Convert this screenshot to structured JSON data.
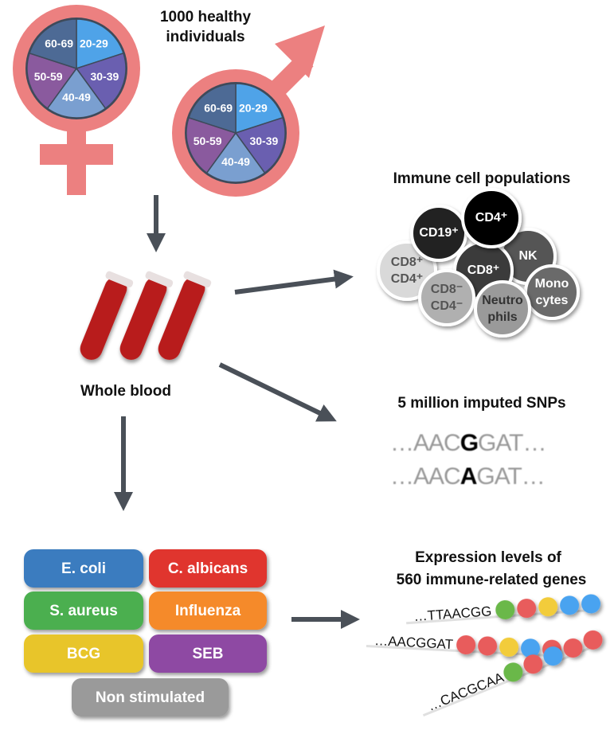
{
  "cohort": {
    "title_line1": "1000 healthy",
    "title_line2": "individuals",
    "age_groups": [
      "20-29",
      "30-39",
      "40-49",
      "50-59",
      "60-69"
    ],
    "age_colors": [
      "#4fa3e8",
      "#6a5fb0",
      "#7a9fd0",
      "#8a5a9e",
      "#4d6a95"
    ],
    "symbol_color": "#ec8080"
  },
  "blood": {
    "label": "Whole blood"
  },
  "cells": {
    "title": "Immune cell populations",
    "items": [
      {
        "l1": "CD8⁺",
        "l2": "CD4⁺",
        "fill": "#d9d9d9",
        "text": "#555"
      },
      {
        "l1": "CD19⁺",
        "l2": "",
        "fill": "#222222",
        "text": "#fff"
      },
      {
        "l1": "NK",
        "l2": "",
        "fill": "#555555",
        "text": "#fff"
      },
      {
        "l1": "CD8⁺",
        "l2": "",
        "fill": "#3a3a3a",
        "text": "#fff"
      },
      {
        "l1": "CD4⁺",
        "l2": "",
        "fill": "#000000",
        "text": "#fff"
      },
      {
        "l1": "Mono",
        "l2": "cytes",
        "fill": "#6a6a6a",
        "text": "#fff"
      },
      {
        "l1": "CD8⁻",
        "l2": "CD4⁻",
        "fill": "#b0b0b0",
        "text": "#555"
      },
      {
        "l1": "Neutro",
        "l2": "phils",
        "fill": "#9a9a9a",
        "text": "#333"
      }
    ]
  },
  "snps": {
    "title": "5 million imputed SNPs",
    "row1": {
      "prefix": "…AAC",
      "allele": "G",
      "suffix": "GAT…"
    },
    "row2": {
      "prefix": "…AAC",
      "allele": "A",
      "suffix": "GAT…"
    }
  },
  "stimuli": {
    "items": [
      {
        "label": "E. coli",
        "color": "#3a7bbf"
      },
      {
        "label": "C. albicans",
        "color": "#e0342f"
      },
      {
        "label": "S. aureus",
        "color": "#4caf50"
      },
      {
        "label": "Influenza",
        "color": "#f58a2a"
      },
      {
        "label": "BCG",
        "color": "#e8c52a"
      },
      {
        "label": "SEB",
        "color": "#8e4aa3"
      },
      {
        "label": "Non stimulated",
        "color": "#9a9a9a"
      }
    ]
  },
  "expression": {
    "title_line1": "Expression levels of",
    "title_line2": "560 immune-related genes",
    "strands": [
      {
        "seq": "…TTAACGG",
        "beads": [
          "#6ab84a",
          "#e85c5c",
          "#f2cc3a",
          "#4aa3f0",
          "#4aa3f0"
        ]
      },
      {
        "seq": "…AACGGAT",
        "beads": [
          "#e85c5c",
          "#e85c5c",
          "#f2cc3a",
          "#4aa3f0",
          "#e85c5c"
        ]
      },
      {
        "seq": "…CACGCAA",
        "beads": [
          "#6ab84a",
          "#e85c5c",
          "#4aa3f0",
          "#e85c5c",
          "#e85c5c"
        ]
      }
    ]
  },
  "arrow_color": "#4a5058"
}
